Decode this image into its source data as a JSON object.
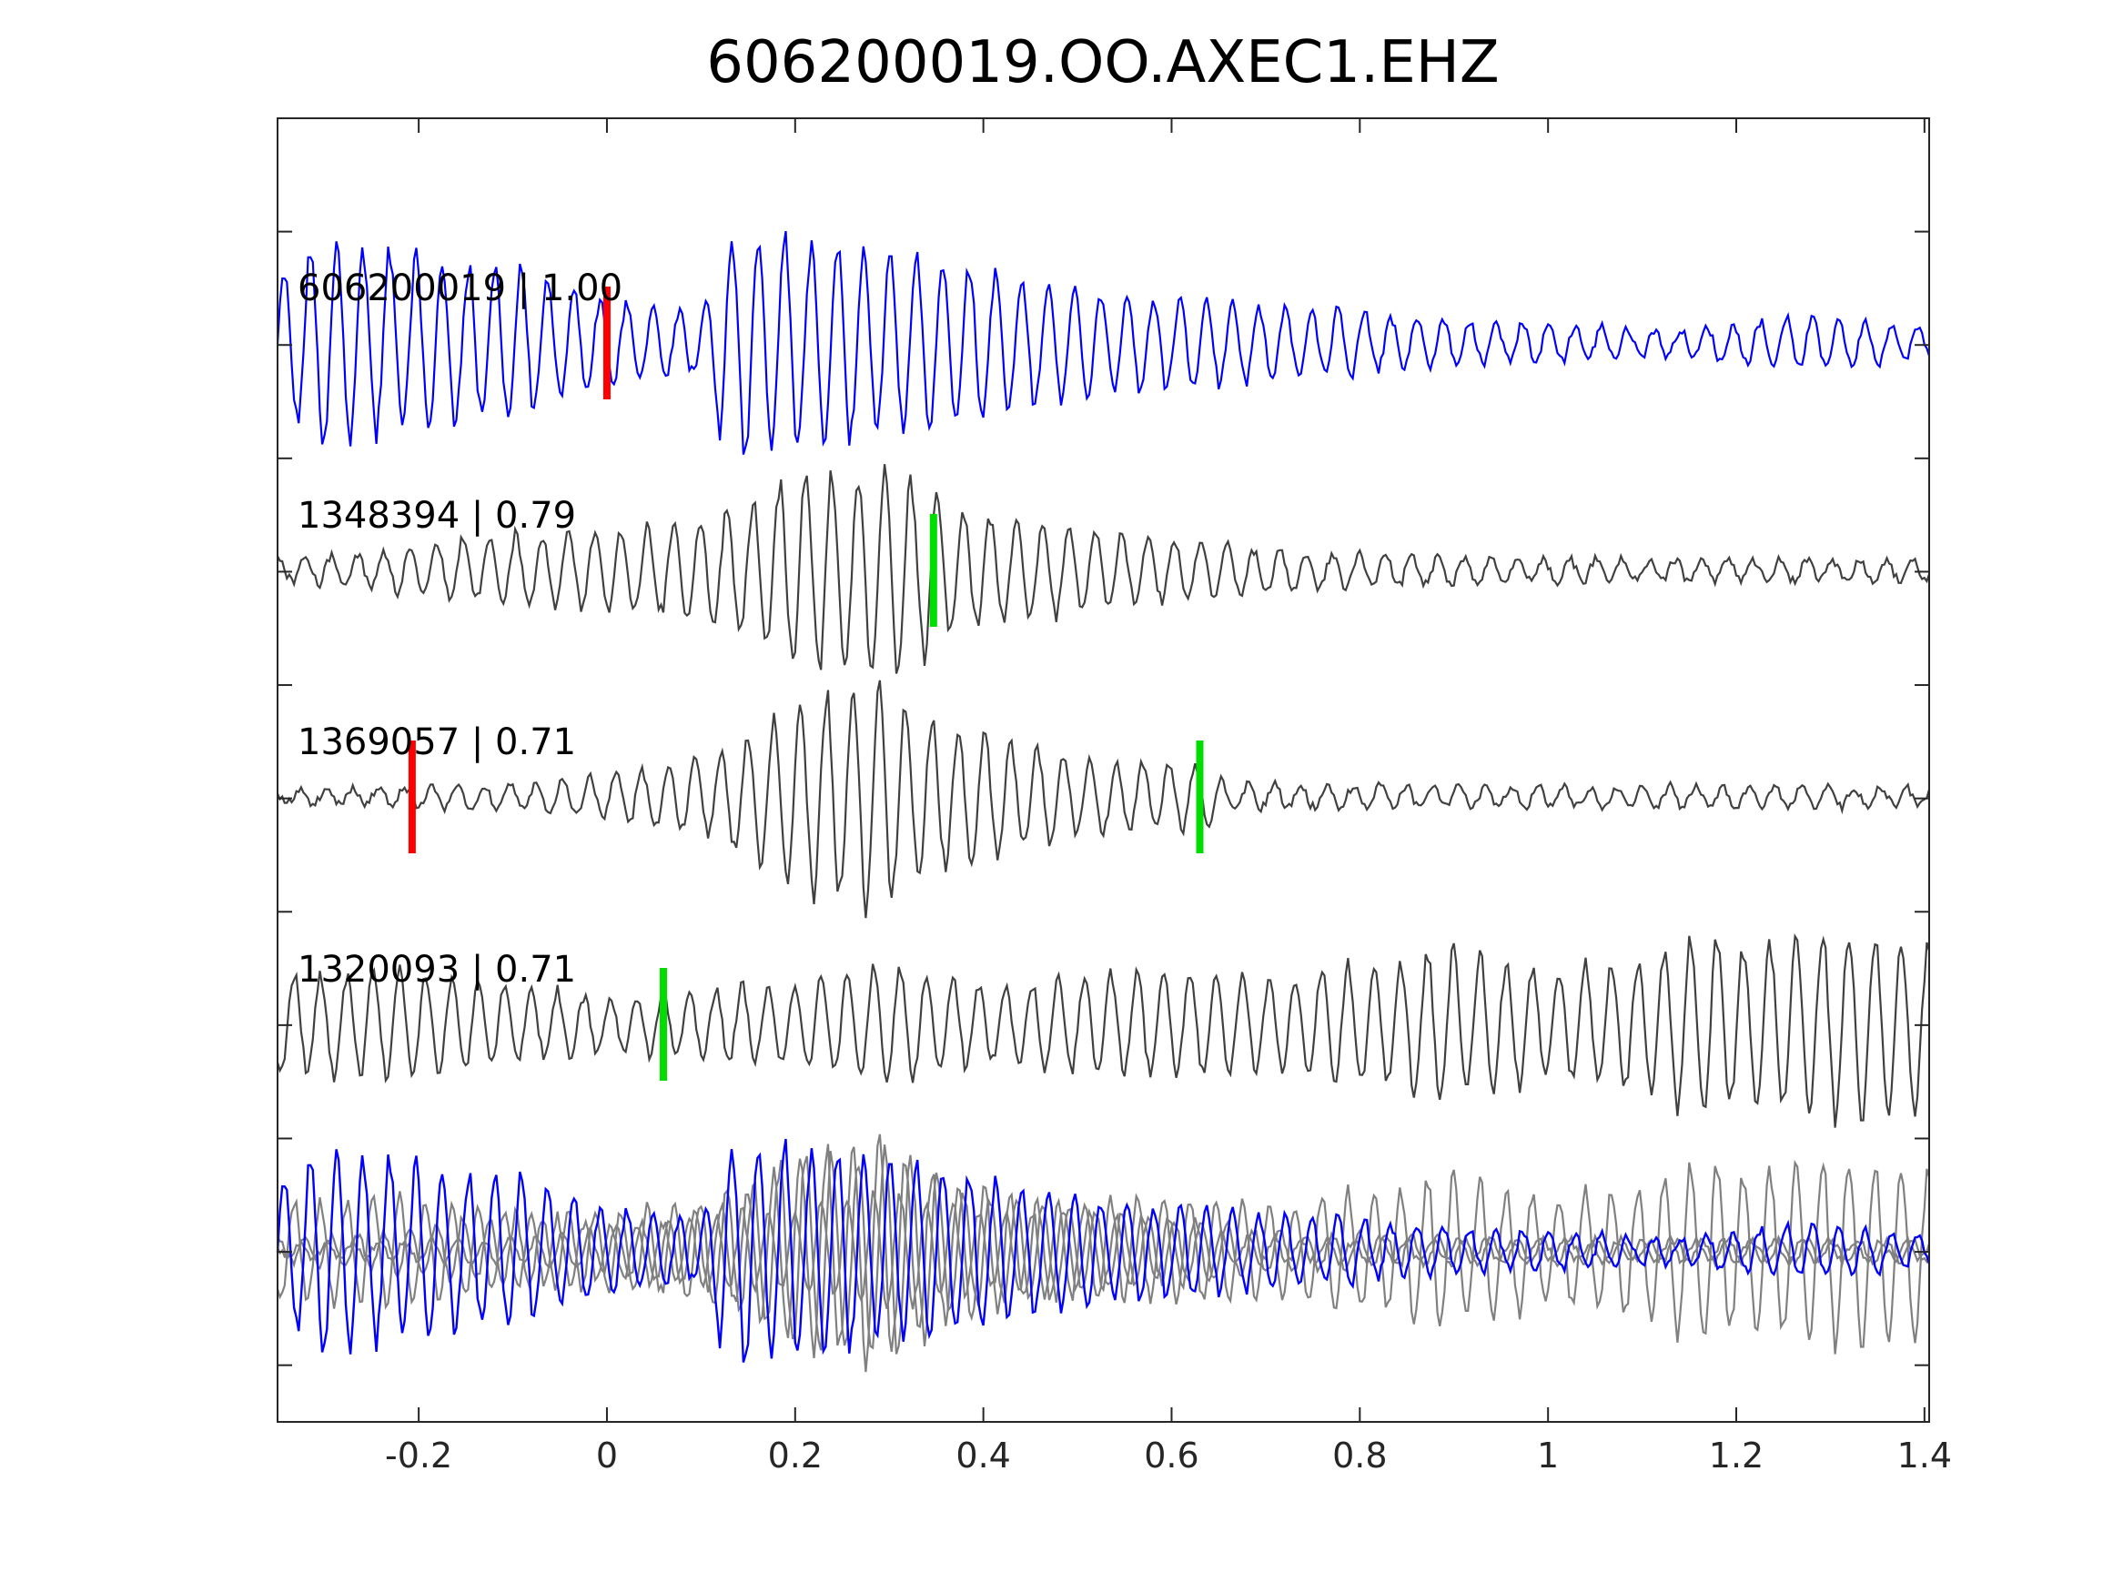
{
  "chart_data": {
    "type": "line",
    "title": "606200019.OO.AXEC1.EHZ",
    "xlabel": "",
    "ylabel": "",
    "xlim": [
      -0.35,
      1.405
    ],
    "x_ticks": [
      -0.2,
      0,
      0.2,
      0.4,
      0.6,
      0.8,
      1,
      1.2,
      1.4
    ],
    "x_tick_labels": [
      "-0.2",
      "0",
      "0.2",
      "0.4",
      "0.6",
      "0.8",
      "1",
      "1.2",
      "1.4"
    ],
    "grid": false,
    "y_tick_count": 11,
    "colors": {
      "template": "#0000ff",
      "detection": "#404040",
      "overlay_detection": "#808080",
      "p_pick": "#ff0000",
      "s_pick": "#00dd00",
      "axes": "#262626"
    },
    "series": [
      {
        "name": "606200019 | 1.00",
        "color": "#0000ff",
        "envelope": [
          [
            -0.35,
            0.6
          ],
          [
            -0.3,
            0.95
          ],
          [
            -0.2,
            0.8
          ],
          [
            -0.1,
            0.7
          ],
          [
            -0.02,
            0.45
          ],
          [
            0.05,
            0.3
          ],
          [
            0.1,
            0.3
          ],
          [
            0.125,
            1.05
          ],
          [
            0.2,
            0.95
          ],
          [
            0.3,
            0.85
          ],
          [
            0.35,
            0.75
          ],
          [
            0.5,
            0.5
          ],
          [
            0.7,
            0.35
          ],
          [
            0.9,
            0.22
          ],
          [
            1.05,
            0.15
          ],
          [
            1.15,
            0.12
          ],
          [
            1.2,
            0.2
          ],
          [
            1.3,
            0.25
          ],
          [
            1.405,
            0.12
          ]
        ],
        "period": 0.028,
        "pick_markers": [
          {
            "phase": "P",
            "x": 0.0,
            "color": "#ff0000"
          }
        ]
      },
      {
        "name": "1348394 | 0.79",
        "color": "#404040",
        "envelope": [
          [
            -0.35,
            0.1
          ],
          [
            -0.25,
            0.15
          ],
          [
            -0.15,
            0.3
          ],
          [
            -0.05,
            0.35
          ],
          [
            0.05,
            0.38
          ],
          [
            0.15,
            0.6
          ],
          [
            0.2,
            0.9
          ],
          [
            0.25,
            0.95
          ],
          [
            0.3,
            1.0
          ],
          [
            0.35,
            0.7
          ],
          [
            0.4,
            0.5
          ],
          [
            0.5,
            0.38
          ],
          [
            0.6,
            0.3
          ],
          [
            0.7,
            0.2
          ],
          [
            0.8,
            0.15
          ],
          [
            1.0,
            0.1
          ],
          [
            1.2,
            0.1
          ],
          [
            1.405,
            0.1
          ]
        ],
        "period": 0.028,
        "pick_markers": [
          {
            "phase": "S",
            "x": 0.347,
            "color": "#00dd00"
          }
        ]
      },
      {
        "name": "1369057 | 0.71",
        "color": "#404040",
        "envelope": [
          [
            -0.35,
            0.05
          ],
          [
            -0.1,
            0.12
          ],
          [
            0.0,
            0.2
          ],
          [
            0.1,
            0.35
          ],
          [
            0.15,
            0.55
          ],
          [
            0.2,
            0.85
          ],
          [
            0.25,
            1.0
          ],
          [
            0.3,
            1.0
          ],
          [
            0.35,
            0.7
          ],
          [
            0.45,
            0.45
          ],
          [
            0.55,
            0.3
          ],
          [
            0.63,
            0.3
          ],
          [
            0.66,
            0.12
          ],
          [
            0.8,
            0.1
          ],
          [
            1.0,
            0.1
          ],
          [
            1.1,
            0.1
          ],
          [
            1.2,
            0.1
          ],
          [
            1.405,
            0.08
          ]
        ],
        "period": 0.028,
        "pick_markers": [
          {
            "phase": "P",
            "x": -0.207,
            "color": "#ff0000"
          },
          {
            "phase": "S",
            "x": 0.63,
            "color": "#00dd00"
          }
        ]
      },
      {
        "name": "1320093 | 0.71",
        "color": "#404040",
        "envelope": [
          [
            -0.35,
            0.45
          ],
          [
            -0.2,
            0.5
          ],
          [
            -0.1,
            0.35
          ],
          [
            0.0,
            0.25
          ],
          [
            0.1,
            0.3
          ],
          [
            0.2,
            0.4
          ],
          [
            0.3,
            0.55
          ],
          [
            0.4,
            0.35
          ],
          [
            0.5,
            0.45
          ],
          [
            0.6,
            0.5
          ],
          [
            0.7,
            0.4
          ],
          [
            0.8,
            0.55
          ],
          [
            0.9,
            0.7
          ],
          [
            1.0,
            0.5
          ],
          [
            1.1,
            0.6
          ],
          [
            1.15,
            0.85
          ],
          [
            1.2,
            0.75
          ],
          [
            1.3,
            0.9
          ],
          [
            1.405,
            0.75
          ]
        ],
        "period": 0.028,
        "pick_markers": [
          {
            "phase": "S",
            "x": 0.06,
            "color": "#00dd00"
          }
        ]
      }
    ]
  }
}
